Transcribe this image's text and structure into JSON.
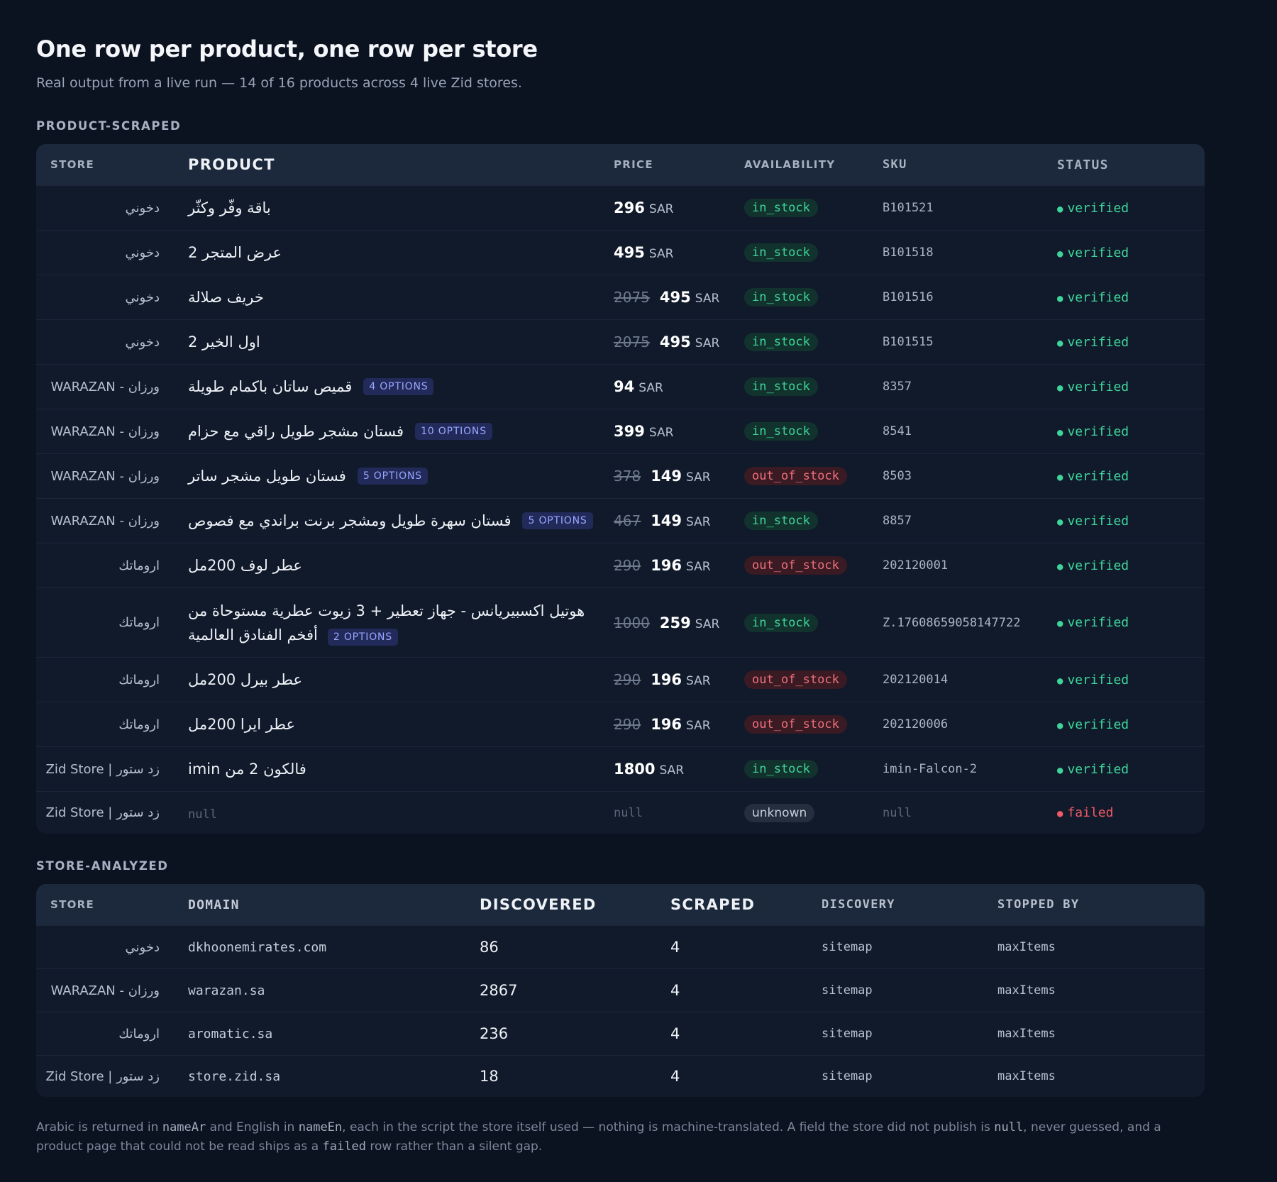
{
  "header": {
    "title": "One row per product, one row per store",
    "subtitle": "Real output from a live run — 14 of 16 products across 4 live Zid stores."
  },
  "product_section": {
    "label": "PRODUCT-SCRAPED",
    "columns": [
      "STORE",
      "PRODUCT",
      "PRICE",
      "AVAILABILITY",
      "SKU",
      "STATUS"
    ],
    "rows": [
      {
        "store": "دخوني",
        "product": "باقة وفّر وكثّر",
        "options": "",
        "price_old": "",
        "price": "296",
        "currency": "SAR",
        "availability": "in_stock",
        "sku": "B101521",
        "status": "verified"
      },
      {
        "store": "دخوني",
        "product": "عرض المتجر 2",
        "options": "",
        "price_old": "",
        "price": "495",
        "currency": "SAR",
        "availability": "in_stock",
        "sku": "B101518",
        "status": "verified"
      },
      {
        "store": "دخوني",
        "product": "خريف صلالة",
        "options": "",
        "price_old": "2075",
        "price": "495",
        "currency": "SAR",
        "availability": "in_stock",
        "sku": "B101516",
        "status": "verified"
      },
      {
        "store": "دخوني",
        "product": "اول الخير 2",
        "options": "",
        "price_old": "2075",
        "price": "495",
        "currency": "SAR",
        "availability": "in_stock",
        "sku": "B101515",
        "status": "verified"
      },
      {
        "store": "WARAZAN - ورزان",
        "product": "قميص ساتان باكمام طويلة",
        "options": "4 OPTIONS",
        "price_old": "",
        "price": "94",
        "currency": "SAR",
        "availability": "in_stock",
        "sku": "8357",
        "status": "verified"
      },
      {
        "store": "WARAZAN - ورزان",
        "product": "فستان مشجر طويل راقي مع حزام",
        "options": "10 OPTIONS",
        "price_old": "",
        "price": "399",
        "currency": "SAR",
        "availability": "in_stock",
        "sku": "8541",
        "status": "verified"
      },
      {
        "store": "WARAZAN - ورزان",
        "product": "فستان طويل مشجر ساتر",
        "options": "5 OPTIONS",
        "price_old": "378",
        "price": "149",
        "currency": "SAR",
        "availability": "out_of_stock",
        "sku": "8503",
        "status": "verified"
      },
      {
        "store": "WARAZAN - ورزان",
        "product": "فستان سهرة طويل ومشجر برنت براندي مع فصوص",
        "options": "5 OPTIONS",
        "price_old": "467",
        "price": "149",
        "currency": "SAR",
        "availability": "in_stock",
        "sku": "8857",
        "status": "verified"
      },
      {
        "store": "اروماتك",
        "product": "عطر لوف 200مل",
        "options": "",
        "price_old": "290",
        "price": "196",
        "currency": "SAR",
        "availability": "out_of_stock",
        "sku": "202120001",
        "status": "verified"
      },
      {
        "store": "اروماتك",
        "product": "هوتيل اكسبيريانس - جهاز تعطير + 3 زيوت عطرية مستوحاة من أفخم الفنادق العالمية",
        "options": "2 OPTIONS",
        "price_old": "1000",
        "price": "259",
        "currency": "SAR",
        "availability": "in_stock",
        "sku": "Z.17608659058147722",
        "status": "verified"
      },
      {
        "store": "اروماتك",
        "product": "عطر بيرل 200مل",
        "options": "",
        "price_old": "290",
        "price": "196",
        "currency": "SAR",
        "availability": "out_of_stock",
        "sku": "202120014",
        "status": "verified"
      },
      {
        "store": "اروماتك",
        "product": "عطر ايرا 200مل",
        "options": "",
        "price_old": "290",
        "price": "196",
        "currency": "SAR",
        "availability": "out_of_stock",
        "sku": "202120006",
        "status": "verified"
      },
      {
        "store": "Zid Store | زد ستور",
        "product": "فالكون 2 من imin",
        "options": "",
        "price_old": "",
        "price": "1800",
        "currency": "SAR",
        "availability": "in_stock",
        "sku": "imin-Falcon-2",
        "status": "verified"
      },
      {
        "store": "Zid Store | زد ستور",
        "product": "null",
        "options": "",
        "price_old": "",
        "price": "null",
        "currency": "",
        "availability": "unknown",
        "sku": "null",
        "status": "failed"
      }
    ]
  },
  "store_section": {
    "label": "STORE-ANALYZED",
    "columns": [
      "STORE",
      "DOMAIN",
      "DISCOVERED",
      "SCRAPED",
      "DISCOVERY",
      "STOPPED BY"
    ],
    "rows": [
      {
        "store": "دخوني",
        "domain": "dkhoonemirates.com",
        "discovered": "86",
        "scraped": "4",
        "discovery": "sitemap",
        "stopped_by": "maxItems"
      },
      {
        "store": "WARAZAN - ورزان",
        "domain": "warazan.sa",
        "discovered": "2867",
        "scraped": "4",
        "discovery": "sitemap",
        "stopped_by": "maxItems"
      },
      {
        "store": "اروماتك",
        "domain": "aromatic.sa",
        "discovered": "236",
        "scraped": "4",
        "discovery": "sitemap",
        "stopped_by": "maxItems"
      },
      {
        "store": "Zid Store | زد ستور",
        "domain": "store.zid.sa",
        "discovered": "18",
        "scraped": "4",
        "discovery": "sitemap",
        "stopped_by": "maxItems"
      }
    ]
  },
  "footnote": {
    "p1": "Arabic is returned in ",
    "c1": "nameAr",
    "p2": " and English in ",
    "c2": "nameEn",
    "p3": ", each in the script the store itself used — nothing is machine-translated. A field the store did not publish is ",
    "c3": "null",
    "p4": ", never guessed, and a product page that could not be read ships as a ",
    "c4": "failed",
    "p5": " row rather than a silent gap."
  },
  "colors": {
    "background": "#0b1220",
    "in_stock": "#3fd59a",
    "out_of_stock": "#f0727e",
    "verified": "#3fd59a",
    "failed": "#f05a66",
    "options_badge": "#9aa6ff"
  }
}
